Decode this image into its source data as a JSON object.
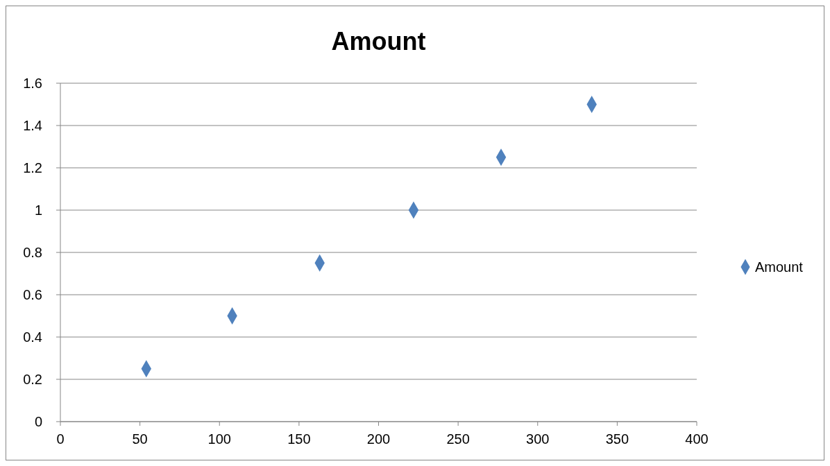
{
  "chart_data": {
    "type": "scatter",
    "title": "Amount",
    "x": [
      54,
      108,
      163,
      222,
      277,
      334
    ],
    "series": [
      {
        "name": "Amount",
        "color": "#4f81bd",
        "values": [
          0.25,
          0.5,
          0.75,
          1,
          1.25,
          1.5
        ]
      }
    ],
    "xlim": [
      0,
      400
    ],
    "xticks": [
      0,
      50,
      100,
      150,
      200,
      250,
      300,
      350,
      400
    ],
    "ylim": [
      0,
      1.6
    ],
    "yticks": [
      0,
      0.2,
      0.4,
      0.6,
      0.8,
      1,
      1.2,
      1.4,
      1.6
    ],
    "grid": "y",
    "legend": "right",
    "marker": "diamond"
  }
}
